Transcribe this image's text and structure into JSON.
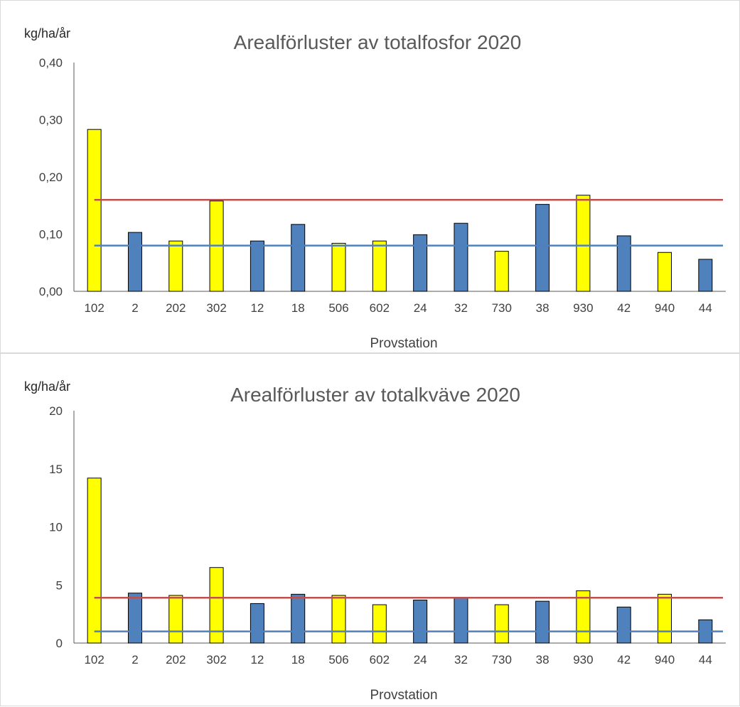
{
  "chart_data": [
    {
      "type": "bar",
      "title": "Arealförluster  av totalfosfor 2020",
      "ylabel": "kg/ha/år",
      "xlabel": "Provstation",
      "ylim": [
        0,
        0.4
      ],
      "yticks": [
        "0,00",
        "0,10",
        "0,20",
        "0,30",
        "0,40"
      ],
      "ytick_values": [
        0,
        0.1,
        0.2,
        0.3,
        0.4
      ],
      "categories": [
        "102",
        "2",
        "202",
        "302",
        "12",
        "18",
        "506",
        "602",
        "24",
        "32",
        "730",
        "38",
        "930",
        "42",
        "940",
        "44"
      ],
      "values": [
        0.283,
        0.103,
        0.088,
        0.158,
        0.088,
        0.117,
        0.084,
        0.088,
        0.099,
        0.119,
        0.07,
        0.152,
        0.168,
        0.097,
        0.068,
        0.056
      ],
      "bar_colors": [
        "#ffff00",
        "#4f81bd",
        "#ffff00",
        "#ffff00",
        "#4f81bd",
        "#4f81bd",
        "#ffff00",
        "#ffff00",
        "#4f81bd",
        "#4f81bd",
        "#ffff00",
        "#4f81bd",
        "#ffff00",
        "#4f81bd",
        "#ffff00",
        "#4f81bd"
      ],
      "reference_lines": [
        {
          "value": 0.16,
          "color": "#c0504d"
        },
        {
          "value": 0.08,
          "color": "#4f81bd"
        }
      ],
      "grid": false
    },
    {
      "type": "bar",
      "title": "Arealförluster  av totalkväve 2020",
      "ylabel": "kg/ha/år",
      "xlabel": "Provstation",
      "ylim": [
        0,
        20
      ],
      "yticks": [
        "0",
        "5",
        "10",
        "15",
        "20"
      ],
      "ytick_values": [
        0,
        5,
        10,
        15,
        20
      ],
      "categories": [
        "102",
        "2",
        "202",
        "302",
        "12",
        "18",
        "506",
        "602",
        "24",
        "32",
        "730",
        "38",
        "930",
        "42",
        "940",
        "44"
      ],
      "values": [
        14.2,
        4.3,
        4.1,
        6.5,
        3.4,
        4.2,
        4.1,
        3.3,
        3.7,
        3.9,
        3.3,
        3.6,
        4.5,
        3.1,
        4.2,
        2.0
      ],
      "bar_colors": [
        "#ffff00",
        "#4f81bd",
        "#ffff00",
        "#ffff00",
        "#4f81bd",
        "#4f81bd",
        "#ffff00",
        "#ffff00",
        "#4f81bd",
        "#4f81bd",
        "#ffff00",
        "#4f81bd",
        "#ffff00",
        "#4f81bd",
        "#ffff00",
        "#4f81bd"
      ],
      "reference_lines": [
        {
          "value": 3.9,
          "color": "#c0504d"
        },
        {
          "value": 1.0,
          "color": "#4f81bd"
        }
      ],
      "grid": false
    }
  ]
}
